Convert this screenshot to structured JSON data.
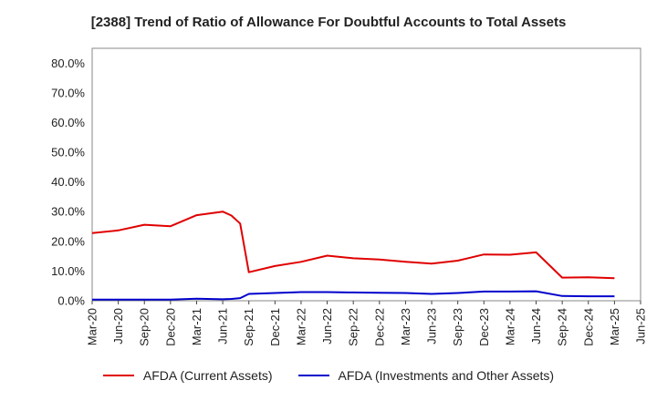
{
  "chart_data": {
    "type": "line",
    "title": "[2388]  Trend of Ratio of Allowance For Doubtful Accounts to Total Assets",
    "xlabel": "",
    "ylabel": "",
    "ylim": [
      0,
      85
    ],
    "y_ticks": [
      "0.0%",
      "10.0%",
      "20.0%",
      "30.0%",
      "40.0%",
      "50.0%",
      "60.0%",
      "70.0%",
      "80.0%"
    ],
    "x_ticks": [
      "Mar-20",
      "Jun-20",
      "Sep-20",
      "Dec-20",
      "Mar-21",
      "Jun-21",
      "Sep-21",
      "Dec-21",
      "Mar-22",
      "Jun-22",
      "Sep-22",
      "Dec-22",
      "Mar-23",
      "Jun-23",
      "Sep-23",
      "Dec-23",
      "Mar-24",
      "Jun-24",
      "Sep-24",
      "Dec-24",
      "Mar-25",
      "Jun-25"
    ],
    "grid": true,
    "legend_position": "bottom",
    "series": [
      {
        "name": "AFDA (Current Assets)",
        "color": "#e00000",
        "x": [
          "Mar-20",
          "Jun-20",
          "Sep-20",
          "Dec-20",
          "Mar-21",
          "Jun-21",
          "Jul-21",
          "Aug-21",
          "Sep-21",
          "Dec-21",
          "Mar-22",
          "Jun-22",
          "Sep-22",
          "Dec-22",
          "Mar-23",
          "Jun-23",
          "Sep-23",
          "Dec-23",
          "Mar-24",
          "Jun-24",
          "Sep-24",
          "Dec-24",
          "Mar-25"
        ],
        "values": [
          22.8,
          23.7,
          25.6,
          25.1,
          28.8,
          30.0,
          28.7,
          26.0,
          9.6,
          11.7,
          13.1,
          15.2,
          14.3,
          13.9,
          13.1,
          12.5,
          13.5,
          15.6,
          15.5,
          16.3,
          7.8,
          7.9,
          7.6
        ]
      },
      {
        "name": "AFDA (Investments and Other Assets)",
        "color": "#0000cc",
        "x": [
          "Mar-20",
          "Jun-20",
          "Sep-20",
          "Dec-20",
          "Mar-21",
          "Jun-21",
          "Jul-21",
          "Aug-21",
          "Sep-21",
          "Dec-21",
          "Mar-22",
          "Jun-22",
          "Sep-22",
          "Dec-22",
          "Mar-23",
          "Jun-23",
          "Sep-23",
          "Dec-23",
          "Mar-24",
          "Jun-24",
          "Sep-24",
          "Dec-24",
          "Mar-25"
        ],
        "values": [
          0.4,
          0.4,
          0.4,
          0.4,
          0.7,
          0.5,
          0.6,
          0.9,
          2.3,
          2.6,
          2.9,
          2.9,
          2.8,
          2.7,
          2.6,
          2.3,
          2.6,
          3.1,
          3.1,
          3.2,
          1.6,
          1.5,
          1.5
        ]
      }
    ]
  }
}
